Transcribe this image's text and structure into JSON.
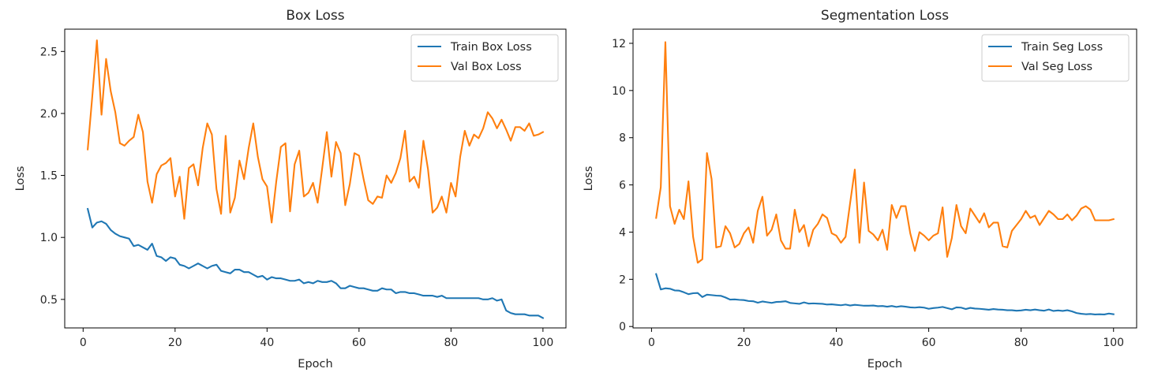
{
  "chart_data": [
    {
      "type": "line",
      "title": "Box Loss",
      "xlabel": "Epoch",
      "ylabel": "Loss",
      "xlim": [
        -4,
        105
      ],
      "ylim": [
        0.27,
        2.68
      ],
      "xticks": [
        0,
        20,
        40,
        60,
        80,
        100
      ],
      "yticks": [
        0.5,
        1.0,
        1.5,
        2.0,
        2.5
      ],
      "ytick_labels": [
        "0.5",
        "1.0",
        "1.5",
        "2.0",
        "2.5"
      ],
      "grid": false,
      "legend": "top-right",
      "x": [
        1,
        2,
        3,
        4,
        5,
        6,
        7,
        8,
        9,
        10,
        11,
        12,
        13,
        14,
        15,
        16,
        17,
        18,
        19,
        20,
        21,
        22,
        23,
        24,
        25,
        26,
        27,
        28,
        29,
        30,
        31,
        32,
        33,
        34,
        35,
        36,
        37,
        38,
        39,
        40,
        41,
        42,
        43,
        44,
        45,
        46,
        47,
        48,
        49,
        50,
        51,
        52,
        53,
        54,
        55,
        56,
        57,
        58,
        59,
        60,
        61,
        62,
        63,
        64,
        65,
        66,
        67,
        68,
        69,
        70,
        71,
        72,
        73,
        74,
        75,
        76,
        77,
        78,
        79,
        80,
        81,
        82,
        83,
        84,
        85,
        86,
        87,
        88,
        89,
        90,
        91,
        92,
        93,
        94,
        95,
        96,
        97,
        98,
        99,
        100
      ],
      "series": [
        {
          "name": "Train Box Loss",
          "color": "#1f77b4",
          "values": [
            1.23,
            1.08,
            1.12,
            1.13,
            1.11,
            1.06,
            1.03,
            1.01,
            1.0,
            0.99,
            0.93,
            0.94,
            0.92,
            0.9,
            0.95,
            0.85,
            0.84,
            0.81,
            0.84,
            0.83,
            0.78,
            0.77,
            0.75,
            0.77,
            0.79,
            0.77,
            0.75,
            0.77,
            0.78,
            0.73,
            0.72,
            0.71,
            0.74,
            0.74,
            0.72,
            0.72,
            0.7,
            0.68,
            0.69,
            0.66,
            0.68,
            0.67,
            0.67,
            0.66,
            0.65,
            0.65,
            0.66,
            0.63,
            0.64,
            0.63,
            0.65,
            0.64,
            0.64,
            0.65,
            0.63,
            0.59,
            0.59,
            0.61,
            0.6,
            0.59,
            0.59,
            0.58,
            0.57,
            0.57,
            0.59,
            0.58,
            0.58,
            0.55,
            0.56,
            0.56,
            0.55,
            0.55,
            0.54,
            0.53,
            0.53,
            0.53,
            0.52,
            0.53,
            0.51,
            0.51,
            0.51,
            0.51,
            0.51,
            0.51,
            0.51,
            0.51,
            0.5,
            0.5,
            0.51,
            0.49,
            0.5,
            0.41,
            0.39,
            0.38,
            0.38,
            0.38,
            0.37,
            0.37,
            0.37,
            0.35
          ]
        },
        {
          "name": "Val Box Loss",
          "color": "#ff7f0e",
          "values": [
            1.71,
            2.14,
            2.59,
            1.99,
            2.44,
            2.18,
            2.01,
            1.76,
            1.74,
            1.78,
            1.81,
            1.99,
            1.85,
            1.45,
            1.28,
            1.51,
            1.58,
            1.6,
            1.64,
            1.33,
            1.49,
            1.15,
            1.56,
            1.59,
            1.42,
            1.72,
            1.92,
            1.83,
            1.39,
            1.19,
            1.82,
            1.2,
            1.32,
            1.62,
            1.47,
            1.72,
            1.92,
            1.65,
            1.47,
            1.41,
            1.12,
            1.45,
            1.73,
            1.76,
            1.21,
            1.59,
            1.7,
            1.33,
            1.36,
            1.44,
            1.28,
            1.56,
            1.85,
            1.49,
            1.77,
            1.68,
            1.26,
            1.43,
            1.68,
            1.66,
            1.47,
            1.3,
            1.27,
            1.33,
            1.32,
            1.5,
            1.44,
            1.52,
            1.64,
            1.86,
            1.45,
            1.49,
            1.4,
            1.78,
            1.55,
            1.2,
            1.24,
            1.33,
            1.2,
            1.44,
            1.33,
            1.65,
            1.86,
            1.74,
            1.83,
            1.8,
            1.88,
            2.01,
            1.96,
            1.88,
            1.95,
            1.87,
            1.78,
            1.89,
            1.89,
            1.86,
            1.92,
            1.82,
            1.83,
            1.85
          ]
        }
      ]
    },
    {
      "type": "line",
      "title": "Segmentation Loss",
      "xlabel": "Epoch",
      "ylabel": "Loss",
      "xlim": [
        -4,
        105
      ],
      "ylim": [
        -0.06,
        12.6
      ],
      "xticks": [
        0,
        20,
        40,
        60,
        80,
        100
      ],
      "yticks": [
        0,
        2,
        4,
        6,
        8,
        10,
        12
      ],
      "ytick_labels": [
        "0",
        "2",
        "4",
        "6",
        "8",
        "10",
        "12"
      ],
      "grid": false,
      "legend": "top-right",
      "x": [
        1,
        2,
        3,
        4,
        5,
        6,
        7,
        8,
        9,
        10,
        11,
        12,
        13,
        14,
        15,
        16,
        17,
        18,
        19,
        20,
        21,
        22,
        23,
        24,
        25,
        26,
        27,
        28,
        29,
        30,
        31,
        32,
        33,
        34,
        35,
        36,
        37,
        38,
        39,
        40,
        41,
        42,
        43,
        44,
        45,
        46,
        47,
        48,
        49,
        50,
        51,
        52,
        53,
        54,
        55,
        56,
        57,
        58,
        59,
        60,
        61,
        62,
        63,
        64,
        65,
        66,
        67,
        68,
        69,
        70,
        71,
        72,
        73,
        74,
        75,
        76,
        77,
        78,
        79,
        80,
        81,
        82,
        83,
        84,
        85,
        86,
        87,
        88,
        89,
        90,
        91,
        92,
        93,
        94,
        95,
        96,
        97,
        98,
        99,
        100
      ],
      "series": [
        {
          "name": "Train Seg Loss",
          "color": "#1f77b4",
          "values": [
            2.22,
            1.57,
            1.62,
            1.6,
            1.53,
            1.52,
            1.45,
            1.37,
            1.41,
            1.42,
            1.25,
            1.35,
            1.33,
            1.31,
            1.3,
            1.23,
            1.14,
            1.15,
            1.13,
            1.12,
            1.08,
            1.07,
            1.01,
            1.06,
            1.03,
            1.0,
            1.04,
            1.05,
            1.07,
            1.0,
            0.98,
            0.96,
            1.02,
            0.97,
            0.98,
            0.97,
            0.96,
            0.93,
            0.94,
            0.92,
            0.9,
            0.93,
            0.89,
            0.92,
            0.9,
            0.88,
            0.88,
            0.89,
            0.86,
            0.87,
            0.84,
            0.87,
            0.83,
            0.86,
            0.84,
            0.81,
            0.8,
            0.82,
            0.8,
            0.75,
            0.78,
            0.8,
            0.83,
            0.78,
            0.73,
            0.81,
            0.8,
            0.74,
            0.79,
            0.76,
            0.75,
            0.73,
            0.71,
            0.74,
            0.72,
            0.71,
            0.69,
            0.69,
            0.67,
            0.68,
            0.71,
            0.69,
            0.72,
            0.69,
            0.67,
            0.72,
            0.66,
            0.68,
            0.66,
            0.69,
            0.64,
            0.57,
            0.54,
            0.52,
            0.53,
            0.51,
            0.52,
            0.51,
            0.55,
            0.52
          ]
        },
        {
          "name": "Val Seg Loss",
          "color": "#ff7f0e",
          "values": [
            4.6,
            5.9,
            12.05,
            5.1,
            4.35,
            4.95,
            4.55,
            6.15,
            3.8,
            2.7,
            2.85,
            7.35,
            6.25,
            3.35,
            3.4,
            4.25,
            3.95,
            3.35,
            3.5,
            3.95,
            4.2,
            3.55,
            4.9,
            5.5,
            3.85,
            4.1,
            4.75,
            3.65,
            3.3,
            3.3,
            4.95,
            4.0,
            4.3,
            3.4,
            4.1,
            4.35,
            4.75,
            4.6,
            3.95,
            3.85,
            3.55,
            3.8,
            5.25,
            6.65,
            3.55,
            6.1,
            4.05,
            3.9,
            3.65,
            4.1,
            3.25,
            5.15,
            4.6,
            5.1,
            5.1,
            3.95,
            3.2,
            4.0,
            3.85,
            3.65,
            3.85,
            3.95,
            5.05,
            2.95,
            3.75,
            5.15,
            4.25,
            3.95,
            5.0,
            4.7,
            4.4,
            4.8,
            4.2,
            4.4,
            4.4,
            3.4,
            3.35,
            4.05,
            4.3,
            4.55,
            4.9,
            4.6,
            4.7,
            4.3,
            4.6,
            4.9,
            4.75,
            4.55,
            4.55,
            4.75,
            4.5,
            4.7,
            5.0,
            5.1,
            4.95,
            4.5,
            4.5,
            4.5,
            4.5,
            4.55
          ]
        }
      ]
    }
  ]
}
